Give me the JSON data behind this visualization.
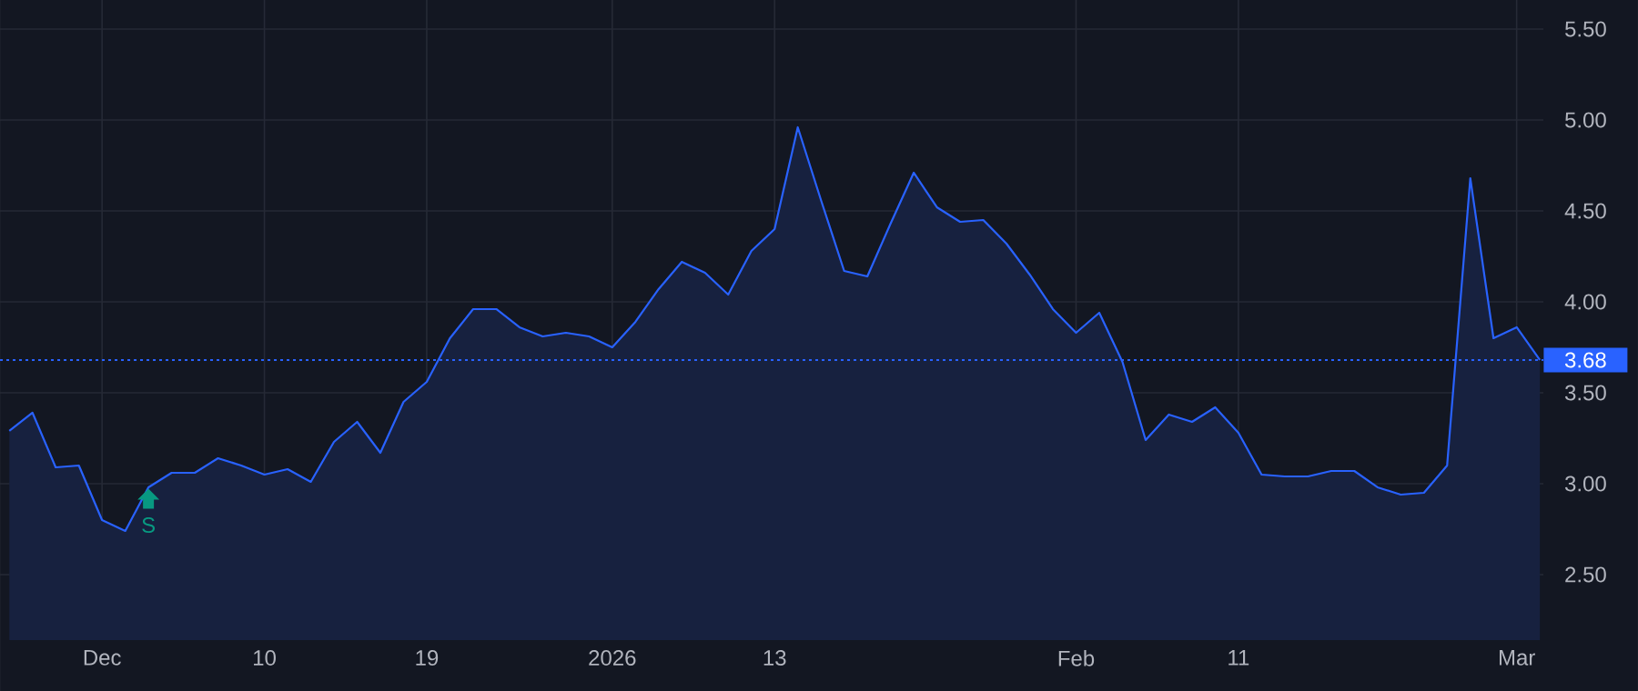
{
  "chart_data": {
    "type": "area",
    "categories": [
      null,
      null,
      null,
      null,
      "Dec",
      null,
      null,
      null,
      null,
      null,
      null,
      "10",
      null,
      null,
      null,
      null,
      null,
      null,
      "19",
      null,
      null,
      null,
      null,
      null,
      null,
      null,
      "2026",
      null,
      null,
      null,
      null,
      null,
      null,
      "13",
      null,
      null,
      null,
      null,
      null,
      null,
      null,
      null,
      null,
      null,
      null,
      null,
      "Feb",
      null,
      null,
      null,
      null,
      null,
      null,
      "11",
      null,
      null,
      null,
      null,
      null,
      null,
      null,
      null,
      null,
      null,
      null,
      "Mar",
      null
    ],
    "series": [
      {
        "color": "#2962ff",
        "values": [
          3.29,
          3.39,
          3.09,
          3.1,
          2.8,
          2.74,
          2.98,
          3.06,
          3.06,
          3.14,
          3.1,
          3.05,
          3.08,
          3.01,
          3.23,
          3.34,
          3.17,
          3.45,
          3.56,
          3.8,
          3.96,
          3.96,
          3.86,
          3.81,
          3.83,
          3.81,
          3.75,
          3.89,
          4.07,
          4.22,
          4.16,
          4.04,
          4.28,
          4.4,
          4.96,
          4.56,
          4.17,
          4.14,
          4.43,
          4.71,
          4.52,
          4.44,
          4.45,
          4.32,
          4.15,
          3.96,
          3.83,
          3.94,
          3.67,
          3.24,
          3.38,
          3.34,
          3.42,
          3.28,
          3.05,
          3.04,
          3.04,
          3.07,
          3.07,
          2.98,
          2.94,
          2.95,
          3.1,
          4.68,
          3.8,
          3.86,
          3.68
        ]
      }
    ],
    "ylim": [
      2.14,
      5.66
    ],
    "yticks": [
      {
        "value": 2.5,
        "label": "2.50"
      },
      {
        "value": 3.0,
        "label": "3.00"
      },
      {
        "value": 3.5,
        "label": "3.50"
      },
      {
        "value": 4.0,
        "label": "4.00"
      },
      {
        "value": 4.5,
        "label": "4.50"
      },
      {
        "value": 5.0,
        "label": "5.00"
      },
      {
        "value": 5.5,
        "label": "5.50"
      }
    ],
    "grid": true,
    "ref_lines": [
      {
        "axis": "y",
        "value": 3.68,
        "label": "3.68",
        "color": "#2962ff",
        "line_style": "dotted"
      }
    ],
    "annotations": [
      "S"
    ]
  }
}
